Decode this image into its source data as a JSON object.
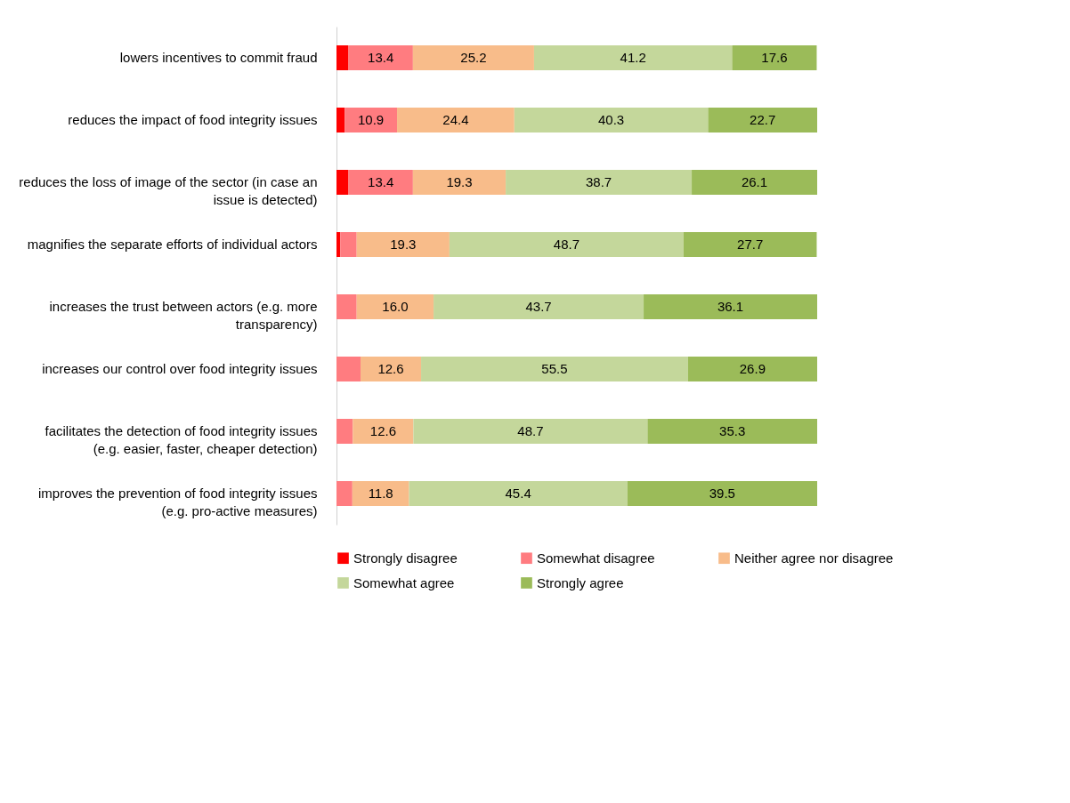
{
  "chart_data": {
    "type": "bar",
    "orientation": "horizontal",
    "stacked": true,
    "xlim": [
      0,
      100
    ],
    "tick_labels": "y",
    "grid": false,
    "legend": "bottom",
    "categories": [
      "lowers incentives to commit fraud",
      "reduces the impact of food integrity issues",
      "reduces the loss of image of the sector (in case an\nissue is detected)",
      "magnifies the separate efforts of individual actors",
      "increases the trust between actors (e.g. more\ntransparency)",
      "increases our control over food integrity issues",
      "facilitates the detection of food integrity issues\n(e.g. easier, faster, cheaper detection)",
      "improves the prevention of food integrity issues\n(e.g. pro-active measures)"
    ],
    "series": [
      {
        "name": "Strongly disagree",
        "color": "#ff0000",
        "values": [
          2.5,
          1.7,
          2.5,
          0.8,
          0,
          0,
          0,
          0
        ],
        "value_labels": [
          null,
          null,
          null,
          null,
          null,
          null,
          null,
          null
        ]
      },
      {
        "name": "Somewhat disagree",
        "color": "#ff7c80",
        "values": [
          13.4,
          10.9,
          13.4,
          3.4,
          4.2,
          5.0,
          3.4,
          3.3
        ],
        "value_labels": [
          "13.4",
          "10.9",
          "13.4",
          null,
          null,
          null,
          null,
          null
        ]
      },
      {
        "name": "Neither agree nor disagree",
        "color": "#f8bc8a",
        "values": [
          25.2,
          24.4,
          19.3,
          19.3,
          16.0,
          12.6,
          12.6,
          11.8
        ],
        "value_labels": [
          "25.2",
          "24.4",
          "19.3",
          "19.3",
          "16.0",
          "12.6",
          "12.6",
          "11.8"
        ]
      },
      {
        "name": "Somewhat agree",
        "color": "#c4d79b",
        "values": [
          41.2,
          40.3,
          38.7,
          48.7,
          43.7,
          55.5,
          48.7,
          45.4
        ],
        "value_labels": [
          "41.2",
          "40.3",
          "38.7",
          "48.7",
          "43.7",
          "55.5",
          "48.7",
          "45.4"
        ]
      },
      {
        "name": "Strongly agree",
        "color": "#9bbb59",
        "values": [
          17.6,
          22.7,
          26.1,
          27.7,
          36.1,
          26.9,
          35.3,
          39.5
        ],
        "value_labels": [
          "17.6",
          "22.7",
          "26.1",
          "27.7",
          "36.1",
          "26.9",
          "35.3",
          "39.5"
        ]
      }
    ]
  }
}
